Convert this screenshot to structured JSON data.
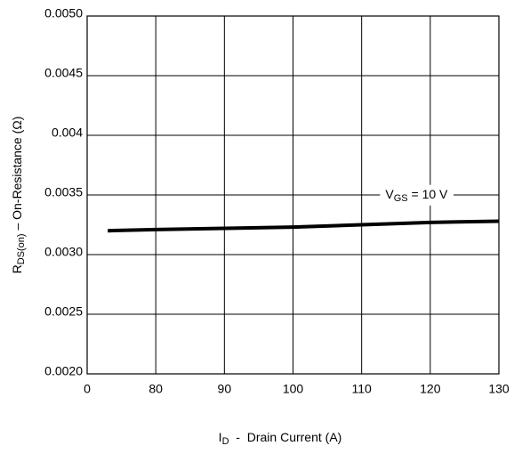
{
  "chart_data": {
    "type": "line",
    "x": [
      73,
      80,
      90,
      100,
      110,
      120,
      130
    ],
    "values": [
      0.0032,
      0.00321,
      0.00322,
      0.00323,
      0.00325,
      0.00327,
      0.00328
    ],
    "color": "#000000",
    "xlim": [
      70,
      130
    ],
    "xticks": [
      {
        "value": 70,
        "label": "0"
      },
      80,
      90,
      100,
      110,
      120,
      130
    ],
    "ylim": [
      0.002,
      0.005
    ],
    "yticks": [
      {
        "value": 0.002,
        "label": "0.0020"
      },
      0.0025,
      {
        "value": 0.003,
        "label": "0.0030"
      },
      0.0035,
      0.004,
      0.0045,
      {
        "value": 0.005,
        "label": "0.0050"
      }
    ],
    "grid": true,
    "annotation": {
      "symbol": "V",
      "subscript": "GS",
      "text": " = 10 V",
      "x": 118,
      "y": 0.0035
    },
    "x_label": {
      "symbol": "I",
      "subscript": "D",
      "text": "  -  Drain Current (A)"
    },
    "y_label": {
      "symbol": "R",
      "subscript": "DS(on)",
      "text": " – On-Resistance (Ω)"
    }
  }
}
